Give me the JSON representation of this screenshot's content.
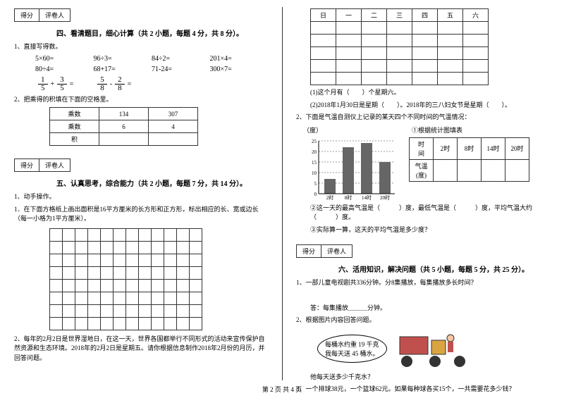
{
  "scorebox": {
    "score": "得分",
    "marker": "评卷人"
  },
  "s4": {
    "title": "四、看清题目，细心计算（共 2 小题，每题 4 分，共 8 分）。",
    "q1": "1、直接写得数。",
    "row1": [
      "5×60=",
      "96÷3=",
      "84÷2=",
      "201×4="
    ],
    "row2": [
      "80÷4=",
      "68+17=",
      "71-24=",
      "300×7="
    ],
    "fracs": {
      "a1n": "1",
      "a1d": "5",
      "p": "+",
      "a2n": "3",
      "a2d": "5",
      "eq": "=",
      "b1n": "5",
      "b1d": "8",
      "m": "-",
      "b2n": "2",
      "b2d": "8",
      "eq2": "="
    },
    "q2": "2、把乘得的积填在下面的空格里。",
    "table": {
      "h1": "乘数",
      "h2": "134",
      "h3": "307",
      "r1": "乘数",
      "r2": "6",
      "r3": "4",
      "r4": "积"
    }
  },
  "s5": {
    "title": "五、认真思考，综合能力（共 2 小题，每题 7 分，共 14 分）。",
    "q1": "1、动手操作。",
    "q1a": "1．在下面方格纸上画出面积是16平方厘米的长方形和正方形，标出相应的长、宽或边长（每一小格为1平方厘米）。",
    "q2": "2、每年的2月2日是世界湿地日，在这一天，世界各国都举行不同形式的活动来宣传保护自然资源和生态环境。2018年的2月2日是星期五。请你根据信息制作2018年2月份的月历，并回答问题。"
  },
  "cal": {
    "days": [
      "日",
      "一",
      "二",
      "三",
      "四",
      "五",
      "六"
    ],
    "q1": "(1)这个月有（　　）个星期六。",
    "q2": "(2)2018年1月30日是星期（　　）。2018年的三八妇女节是星期（　　）。"
  },
  "temp": {
    "intro": "2、下面是气温自测仪上记录的某天四个不同时间的气温情况：",
    "ylabel": "（度）",
    "rtitle": "①根据统计图填表",
    "yticks": [
      "25",
      "20",
      "15",
      "10",
      "5",
      "0"
    ],
    "xticks": [
      "2时",
      "8时",
      "14时",
      "20时"
    ],
    "bars": [
      7,
      22,
      24,
      15
    ],
    "tbl": {
      "h1": "时　间",
      "c1": "2时",
      "c2": "8时",
      "c3": "14时",
      "c4": "20时",
      "r1": "气温(度)"
    },
    "q2": "②这一天的最高气温是（　　　）度，最低气温是（　　　）度，平均气温大约（　　　）度。",
    "q3": "③实际算一算，这天的平均气温是多少度？"
  },
  "s6": {
    "title": "六、活用知识，解决问题（共 5 小题，每题 5 分，共 25 分）。",
    "q1": "1、一部儿童电视剧共336分钟。分8集播放，每集播放多长时间？",
    "a1": "答：每集播放＿＿＿分钟。",
    "q2": "2、根据图片内容回答问题。",
    "bubble1": "每桶水约重 19 千克",
    "bubble2": "我每天送 45 桶水。",
    "q2a": "他每天送多少千克水？",
    "q3": "3、一个排球38元，一个篮球62元。如果每种球各买15个，一共需要花多少钱？"
  },
  "footer": "第 2 页 共 4 页"
}
